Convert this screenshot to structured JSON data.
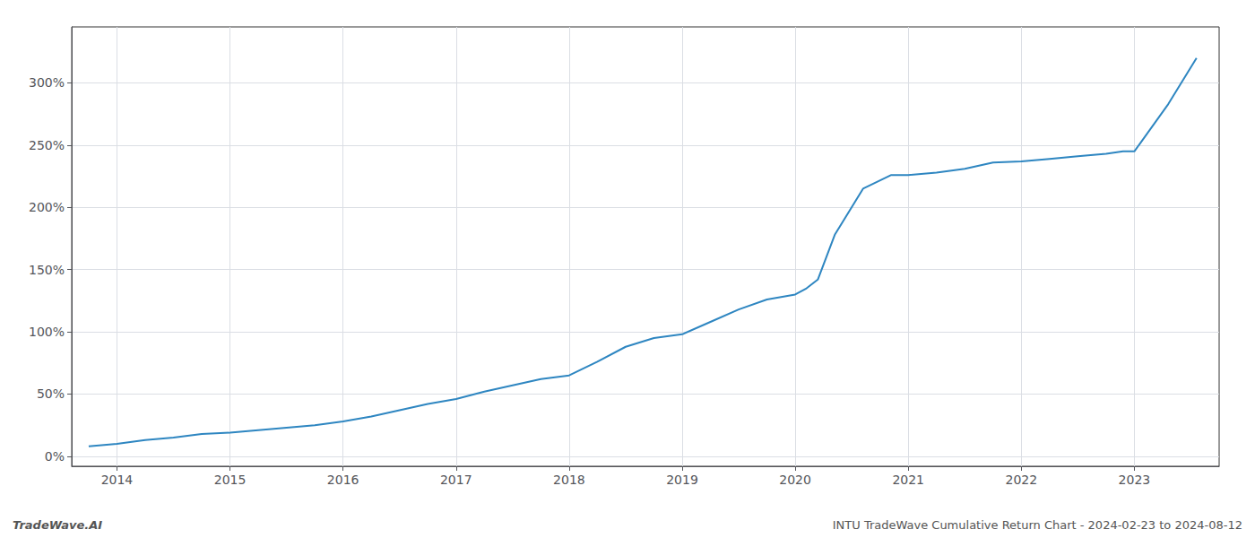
{
  "chart_data": {
    "type": "line",
    "x": [
      2013.75,
      2014.0,
      2014.25,
      2014.5,
      2014.75,
      2015.0,
      2015.25,
      2015.5,
      2015.75,
      2016.0,
      2016.25,
      2016.5,
      2016.75,
      2017.0,
      2017.25,
      2017.5,
      2017.75,
      2018.0,
      2018.25,
      2018.5,
      2018.75,
      2019.0,
      2019.25,
      2019.5,
      2019.75,
      2020.0,
      2020.1,
      2020.2,
      2020.35,
      2020.6,
      2020.85,
      2021.0,
      2021.25,
      2021.5,
      2021.75,
      2022.0,
      2022.25,
      2022.5,
      2022.75,
      2022.9,
      2023.0,
      2023.3,
      2023.55
    ],
    "values": [
      8,
      10,
      13,
      15,
      18,
      19,
      21,
      23,
      25,
      28,
      32,
      37,
      42,
      46,
      52,
      57,
      62,
      65,
      76,
      88,
      95,
      98,
      108,
      118,
      126,
      130,
      135,
      142,
      178,
      215,
      226,
      226,
      228,
      231,
      236,
      237,
      239,
      241,
      243,
      245,
      245,
      283,
      320
    ],
    "color": "#2e86c1",
    "xlim": [
      2013.6,
      2023.75
    ],
    "ylim": [
      -8,
      345
    ],
    "xticks": [
      2014,
      2015,
      2016,
      2017,
      2018,
      2019,
      2020,
      2021,
      2022,
      2023
    ],
    "yticks": [
      {
        "value": 0,
        "label": "0%"
      },
      {
        "value": 50,
        "label": "50%"
      },
      {
        "value": 100,
        "label": "100%"
      },
      {
        "value": 150,
        "label": "150%"
      },
      {
        "value": 200,
        "label": "200%"
      },
      {
        "value": 250,
        "label": "250%"
      },
      {
        "value": 300,
        "label": "300%"
      }
    ],
    "grid": true,
    "annotations": [
      "TradeWave.AI",
      "INTU TradeWave Cumulative Return Chart - 2024-02-23 to 2024-08-12"
    ]
  }
}
